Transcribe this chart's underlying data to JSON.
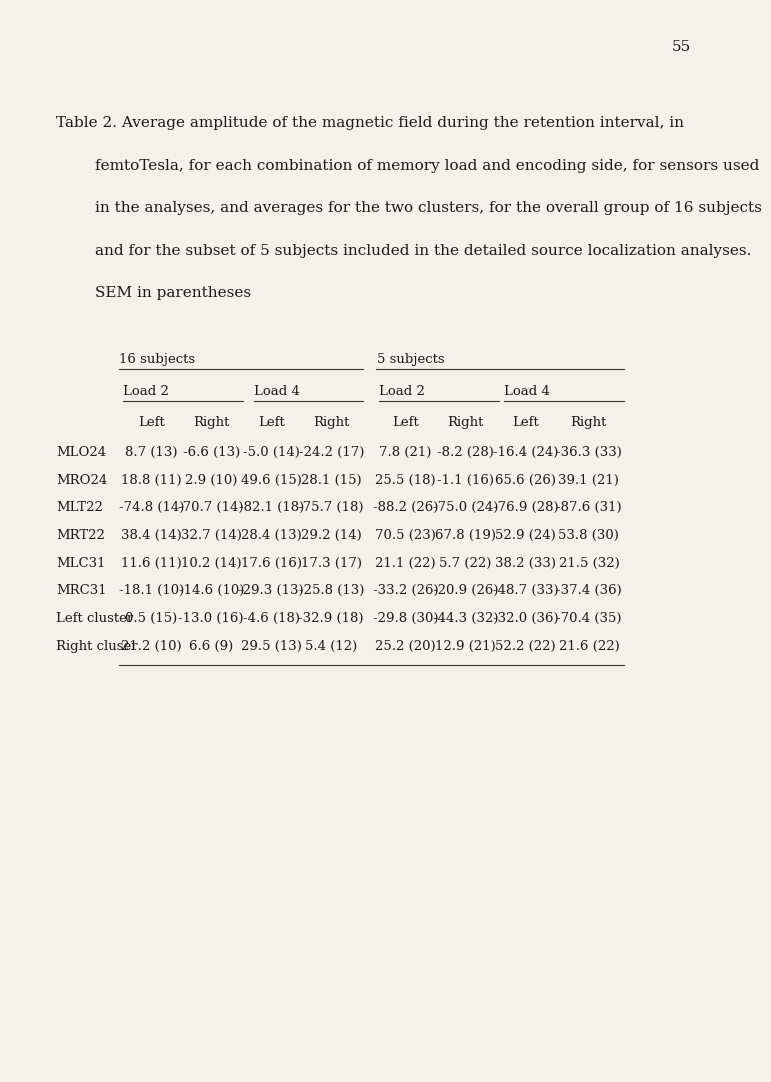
{
  "page_number": "55",
  "title_lines": [
    {
      "text": "Table 2. Average amplitude of the magnetic field during the retention interval, in",
      "indent": 0
    },
    {
      "text": "femtoTesla, for each combination of memory load and encoding side, for sensors used",
      "indent": 0.055
    },
    {
      "text": "in the analyses, and averages for the two clusters, for the overall group of 16 subjects",
      "indent": 0.055
    },
    {
      "text": "and for the subset of 5 subjects included in the detailed source localization analyses.",
      "indent": 0.055
    },
    {
      "text": "SEM in parentheses",
      "indent": 0.055
    }
  ],
  "row_labels": [
    "MLO24",
    "MRO24",
    "MLT22",
    "MRT22",
    "MLC31",
    "MRC31",
    "Left cluster",
    "Right cluser"
  ],
  "table_data": [
    [
      "8.7 (13)",
      "-6.6 (13)",
      "-5.0 (14)",
      "-24.2 (17)",
      "7.8 (21)",
      "-8.2 (28)",
      "-16.4 (24)",
      "-36.3 (33)"
    ],
    [
      "18.8 (11)",
      "2.9 (10)",
      "49.6 (15)",
      "28.1 (15)",
      "25.5 (18)",
      "-1.1 (16)",
      "65.6 (26)",
      "39.1 (21)"
    ],
    [
      "-74.8 (14)",
      "-70.7 (14)",
      "-82.1 (18)",
      "-75.7 (18)",
      "-88.2 (26)",
      "-75.0 (24)",
      "-76.9 (28)",
      "-87.6 (31)"
    ],
    [
      "38.4 (14)",
      "32.7 (14)",
      "28.4 (13)",
      "29.2 (14)",
      "70.5 (23)",
      "67.8 (19)",
      "52.9 (24)",
      "53.8 (30)"
    ],
    [
      "11.6 (11)",
      "10.2 (14)",
      "17.6 (16)",
      "17.3 (17)",
      "21.1 (22)",
      "5.7 (22)",
      "38.2 (33)",
      "21.5 (32)"
    ],
    [
      "-18.1 (10)",
      "-14.6 (10)",
      "-29.3 (13)",
      "-25.8 (13)",
      "-33.2 (26)",
      "-20.9 (26)",
      "-48.7 (33)",
      "-37.4 (36)"
    ],
    [
      "0.5 (15)",
      "-13.0 (16)",
      "-4.6 (18)",
      "-32.9 (18)",
      "-29.8 (30)",
      "-44.3 (32)",
      "-32.0 (36)",
      "-70.4 (35)"
    ],
    [
      "21.2 (10)",
      "6.6 (9)",
      "29.5 (13)",
      "5.4 (12)",
      "25.2 (20)",
      "12.9 (21)",
      "52.2 (22)",
      "21.6 (22)"
    ]
  ],
  "bg_color": "#f2f1ec",
  "text_color": "#1a1a1a",
  "font_size_page": 11,
  "font_size_title": 11,
  "font_size_table": 9.5
}
